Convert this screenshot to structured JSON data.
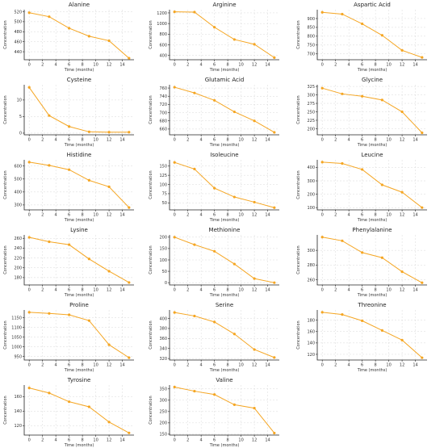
{
  "chart_data": [
    {
      "type": "line",
      "title": "Alanine",
      "xlabel": "Time (months)",
      "ylabel": "Concentration",
      "x": [
        0,
        3,
        6,
        9,
        12,
        15
      ],
      "values": [
        518,
        510,
        487,
        471,
        462,
        427
      ],
      "yticks": [
        440,
        460,
        480,
        500,
        520
      ],
      "ylim": [
        424,
        524
      ],
      "xticks": [
        0,
        2,
        4,
        6,
        8,
        10,
        12,
        14
      ],
      "xlim": [
        -0.75,
        15.75
      ],
      "grid": true
    },
    {
      "type": "line",
      "title": "Arginine",
      "xlabel": "Time (months)",
      "ylabel": "Concentration",
      "x": [
        0,
        3,
        6,
        9,
        12,
        15
      ],
      "values": [
        1220,
        1215,
        930,
        700,
        610,
        360
      ],
      "yticks": [
        400,
        600,
        800,
        1000,
        1200
      ],
      "ylim": [
        320,
        1260
      ],
      "xticks": [
        0,
        2,
        4,
        6,
        8,
        10,
        12,
        14
      ],
      "xlim": [
        -0.75,
        15.75
      ],
      "grid": true
    },
    {
      "type": "line",
      "title": "Aspartic Acid",
      "xlabel": "Time (months)",
      "ylabel": "Concentration",
      "x": [
        0,
        3,
        6,
        9,
        12,
        15
      ],
      "values": [
        935,
        925,
        870,
        805,
        720,
        680
      ],
      "yticks": [
        700,
        750,
        800,
        850,
        900
      ],
      "ylim": [
        667,
        950
      ],
      "xticks": [
        0,
        2,
        4,
        6,
        8,
        10,
        12,
        14
      ],
      "xlim": [
        -0.75,
        15.75
      ],
      "grid": true
    },
    {
      "type": "line",
      "title": "Cysteine",
      "xlabel": "Time (months)",
      "ylabel": "Concentration",
      "x": [
        0,
        3,
        6,
        9,
        12,
        15
      ],
      "values": [
        13.8,
        5.3,
        2,
        0.4,
        0.3,
        0.3
      ],
      "yticks": [
        0,
        5,
        10
      ],
      "ylim": [
        -0.5,
        14.6
      ],
      "xticks": [
        0,
        2,
        4,
        6,
        8,
        10,
        12,
        14
      ],
      "xlim": [
        -0.75,
        15.75
      ],
      "grid": true
    },
    {
      "type": "line",
      "title": "Glutamic Acid",
      "xlabel": "Time (months)",
      "ylabel": "Concentration",
      "x": [
        0,
        3,
        6,
        9,
        12,
        15
      ],
      "values": [
        762,
        748,
        730,
        702,
        680,
        652
      ],
      "yticks": [
        660,
        680,
        700,
        720,
        740,
        760
      ],
      "ylim": [
        646,
        768
      ],
      "xticks": [
        0,
        2,
        4,
        6,
        8,
        10,
        12,
        14
      ],
      "xlim": [
        -0.75,
        15.75
      ],
      "grid": true
    },
    {
      "type": "line",
      "title": "Glycine",
      "xlabel": "Time (months)",
      "ylabel": "Concentration",
      "x": [
        0,
        3,
        6,
        9,
        12,
        15
      ],
      "values": [
        320,
        303,
        296,
        285,
        250,
        188
      ],
      "yticks": [
        200,
        225,
        250,
        275,
        300,
        325
      ],
      "ylim": [
        182,
        330
      ],
      "xticks": [
        0,
        2,
        4,
        6,
        8,
        10,
        12,
        14
      ],
      "xlim": [
        -0.75,
        15.75
      ],
      "grid": true
    },
    {
      "type": "line",
      "title": "Histidine",
      "xlabel": "Time (months)",
      "ylabel": "Concentration",
      "x": [
        0,
        3,
        6,
        9,
        12,
        15
      ],
      "values": [
        630,
        605,
        572,
        490,
        440,
        280
      ],
      "yticks": [
        300,
        400,
        500,
        600
      ],
      "ylim": [
        262,
        648
      ],
      "xticks": [
        0,
        2,
        4,
        6,
        8,
        10,
        12,
        14
      ],
      "xlim": [
        -0.75,
        15.75
      ],
      "grid": true
    },
    {
      "type": "line",
      "title": "Isoleucine",
      "xlabel": "Time (months)",
      "ylabel": "Concentration",
      "x": [
        0,
        3,
        6,
        9,
        12,
        15
      ],
      "values": [
        160,
        142,
        90,
        66,
        52,
        37
      ],
      "yticks": [
        50,
        75,
        100,
        125,
        150
      ],
      "ylim": [
        31,
        167
      ],
      "xticks": [
        0,
        2,
        4,
        6,
        8,
        10,
        12,
        14
      ],
      "xlim": [
        -0.75,
        15.75
      ],
      "grid": true
    },
    {
      "type": "line",
      "title": "Leucine",
      "xlabel": "Time (months)",
      "ylabel": "Concentration",
      "x": [
        0,
        3,
        6,
        9,
        12,
        15
      ],
      "values": [
        440,
        430,
        385,
        270,
        215,
        100
      ],
      "yticks": [
        100,
        200,
        300,
        400
      ],
      "ylim": [
        83,
        457
      ],
      "xticks": [
        0,
        2,
        4,
        6,
        8,
        10,
        12,
        14
      ],
      "xlim": [
        -0.75,
        15.75
      ],
      "grid": true
    },
    {
      "type": "line",
      "title": "Lysine",
      "xlabel": "Time (months)",
      "ylabel": "Concentration",
      "x": [
        0,
        3,
        6,
        9,
        12,
        15
      ],
      "values": [
        262,
        253,
        247,
        218,
        193,
        170
      ],
      "yticks": [
        180,
        200,
        220,
        240,
        260
      ],
      "ylim": [
        165,
        267
      ],
      "xticks": [
        0,
        2,
        4,
        6,
        8,
        10,
        12,
        14
      ],
      "xlim": [
        -0.75,
        15.75
      ],
      "grid": true
    },
    {
      "type": "line",
      "title": "Methionine",
      "xlabel": "Time (months)",
      "ylabel": "Concentration",
      "x": [
        0,
        3,
        6,
        9,
        12,
        15
      ],
      "values": [
        200,
        167,
        138,
        82,
        18,
        0
      ],
      "yticks": [
        0,
        50,
        100,
        150,
        200
      ],
      "ylim": [
        -10,
        210
      ],
      "xticks": [
        0,
        2,
        4,
        6,
        8,
        10,
        12,
        14
      ],
      "xlim": [
        -0.75,
        15.75
      ],
      "grid": true
    },
    {
      "type": "line",
      "title": "Phenylalanine",
      "xlabel": "Time (months)",
      "ylabel": "Concentration",
      "x": [
        0,
        3,
        6,
        9,
        12,
        15
      ],
      "values": [
        318,
        313,
        297,
        290,
        271,
        256
      ],
      "yticks": [
        260,
        280,
        300
      ],
      "ylim": [
        253,
        321
      ],
      "xticks": [
        0,
        2,
        4,
        6,
        8,
        10,
        12,
        14
      ],
      "xlim": [
        -0.75,
        15.75
      ],
      "grid": true
    },
    {
      "type": "line",
      "title": "Proline",
      "xlabel": "Time (months)",
      "ylabel": "Concentration",
      "x": [
        0,
        3,
        6,
        9,
        12,
        15
      ],
      "values": [
        1178,
        1172,
        1165,
        1135,
        1010,
        943
      ],
      "yticks": [
        950,
        1000,
        1050,
        1100,
        1150
      ],
      "ylim": [
        931,
        1190
      ],
      "xticks": [
        0,
        2,
        4,
        6,
        8,
        10,
        12,
        14
      ],
      "xlim": [
        -0.75,
        15.75
      ],
      "grid": true
    },
    {
      "type": "line",
      "title": "Serine",
      "xlabel": "Time (months)",
      "ylabel": "Concentration",
      "x": [
        0,
        3,
        6,
        9,
        12,
        15
      ],
      "values": [
        412,
        405,
        393,
        369,
        338,
        322
      ],
      "yticks": [
        320,
        340,
        360,
        380,
        400
      ],
      "ylim": [
        317,
        417
      ],
      "xticks": [
        0,
        2,
        4,
        6,
        8,
        10,
        12,
        14
      ],
      "xlim": [
        -0.75,
        15.75
      ],
      "grid": true
    },
    {
      "type": "line",
      "title": "Threonine",
      "xlabel": "Time (months)",
      "ylabel": "Concentration",
      "x": [
        0,
        3,
        6,
        9,
        12,
        15
      ],
      "values": [
        194,
        190,
        179,
        162,
        145,
        114
      ],
      "yticks": [
        120,
        140,
        160,
        180
      ],
      "ylim": [
        110,
        198
      ],
      "xticks": [
        0,
        2,
        4,
        6,
        8,
        10,
        12,
        14
      ],
      "xlim": [
        -0.75,
        15.75
      ],
      "grid": true
    },
    {
      "type": "line",
      "title": "Tyrosine",
      "xlabel": "Time (months)",
      "ylabel": "Concentration",
      "x": [
        0,
        3,
        6,
        9,
        12,
        15
      ],
      "values": [
        172,
        165,
        153,
        146,
        125,
        110
      ],
      "yticks": [
        120,
        140,
        160
      ],
      "ylim": [
        107,
        176
      ],
      "xticks": [
        0,
        2,
        4,
        6,
        8,
        10,
        12,
        14
      ],
      "xlim": [
        -0.75,
        15.75
      ],
      "grid": true
    },
    {
      "type": "line",
      "title": "Valine",
      "xlabel": "Time (months)",
      "ylabel": "Concentration",
      "x": [
        0,
        3,
        6,
        9,
        12,
        15
      ],
      "values": [
        358,
        340,
        325,
        280,
        265,
        155
      ],
      "yticks": [
        150,
        200,
        250,
        300,
        350
      ],
      "ylim": [
        146,
        367
      ],
      "xticks": [
        0,
        2,
        4,
        6,
        8,
        10,
        12,
        14
      ],
      "xlim": [
        -0.75,
        15.75
      ],
      "grid": true
    }
  ],
  "colors": {
    "line": "#f5a623",
    "marker": "#f5a623",
    "axis": "#222222",
    "grid": "#d9d9d9"
  }
}
